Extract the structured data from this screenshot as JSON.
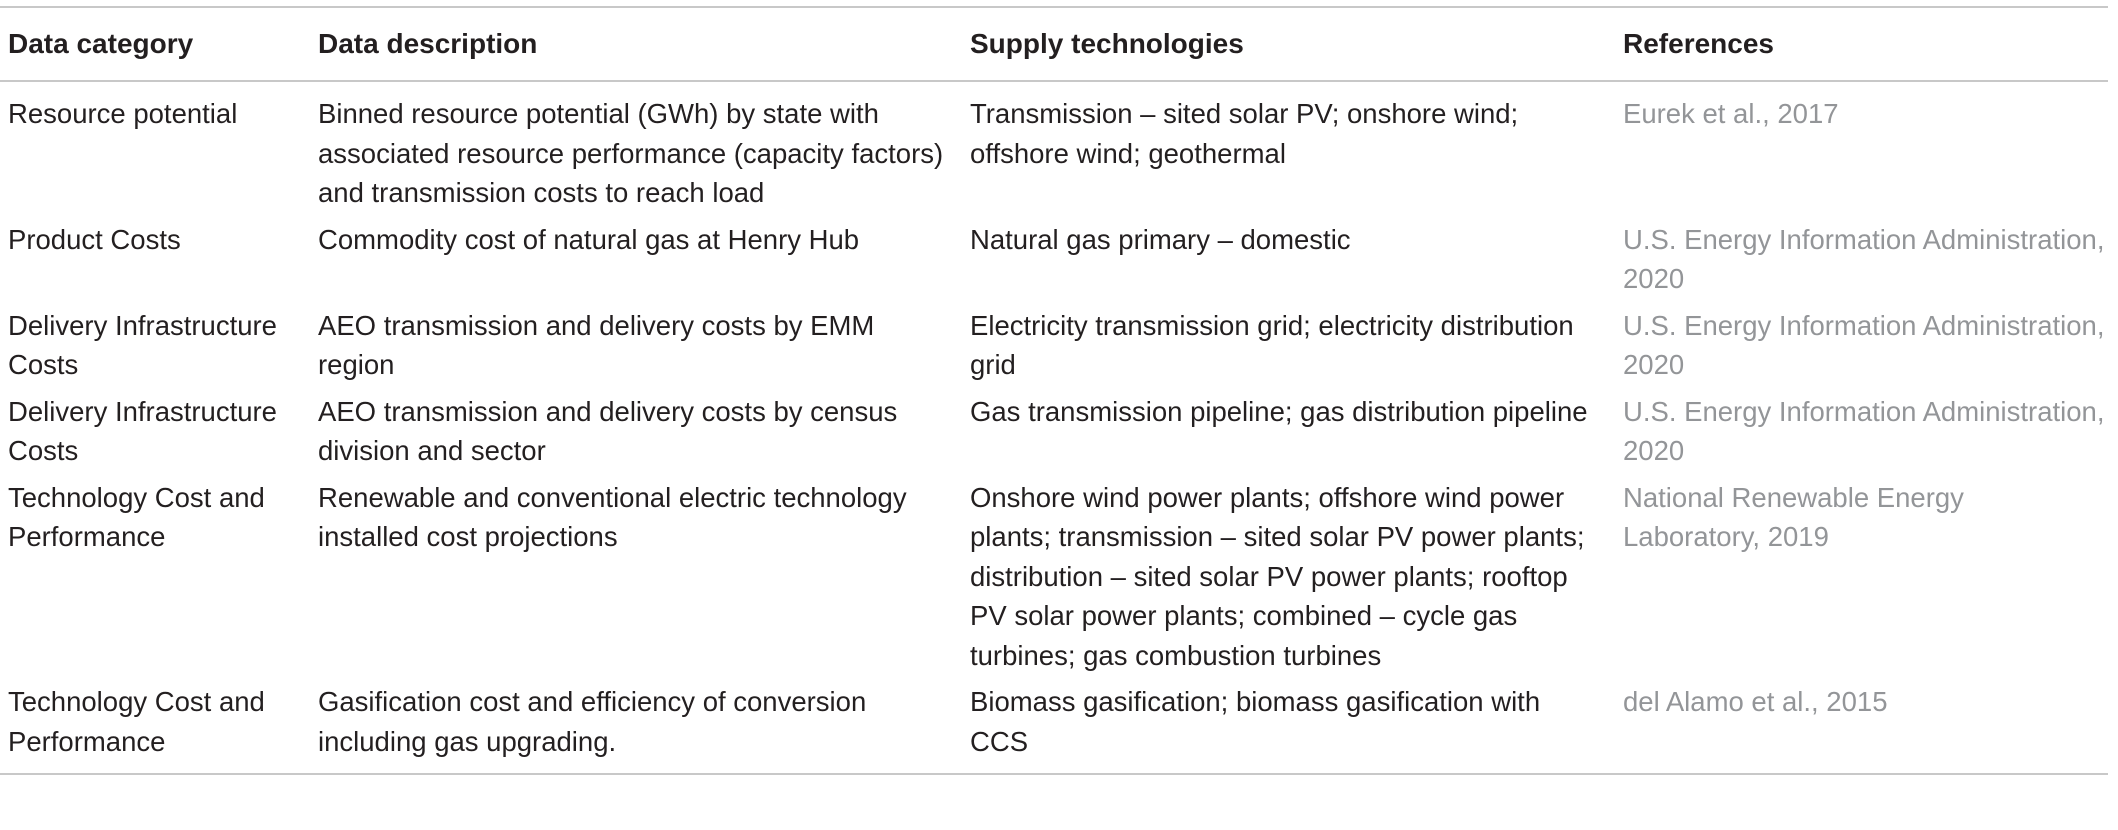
{
  "headers": {
    "category": "Data category",
    "description": "Data description",
    "technologies": "Supply technologies",
    "references": "References"
  },
  "rows": [
    {
      "category": "Resource potential",
      "description": "Binned resource potential (GWh) by state with associated resource performance (capacity factors) and transmission costs to reach load",
      "technologies": "Transmission – sited solar PV; onshore wind; offshore wind; geothermal",
      "references": "Eurek et al., 2017"
    },
    {
      "category": "Product Costs",
      "description": "Commodity cost of natural gas at Henry Hub",
      "technologies": "Natural gas primary – domestic",
      "references": "U.S. Energy Information Administration, 2020"
    },
    {
      "category": "Delivery Infrastructure Costs",
      "description": "AEO transmission and delivery costs by EMM region",
      "technologies": "Electricity transmission grid; electricity distribution grid",
      "references": "U.S. Energy Information Administration, 2020"
    },
    {
      "category": "Delivery Infrastructure Costs",
      "description": "AEO transmission and delivery costs by census division and sector",
      "technologies": "Gas transmission pipeline; gas distribution pipeline",
      "references": "U.S. Energy Information Administration, 2020"
    },
    {
      "category": "Technology Cost and Performance",
      "description": "Renewable and conventional electric technology installed cost projections",
      "technologies": "Onshore wind power plants; offshore wind power plants; transmission – sited solar PV power plants; distribution – sited solar PV power plants; rooftop PV solar power plants; combined – cycle gas turbines; gas combustion turbines",
      "references": "National Renewable Energy Laboratory, 2019"
    },
    {
      "category": "Technology Cost and Performance",
      "description": "Gasification cost and efficiency of conversion including gas upgrading.",
      "technologies": "Biomass gasification; biomass gasification with CCS",
      "references": "del Alamo et al., 2015"
    }
  ],
  "colors": {
    "text": "#231f20",
    "reference_text": "#939598",
    "rule": "#c8c8c8"
  }
}
